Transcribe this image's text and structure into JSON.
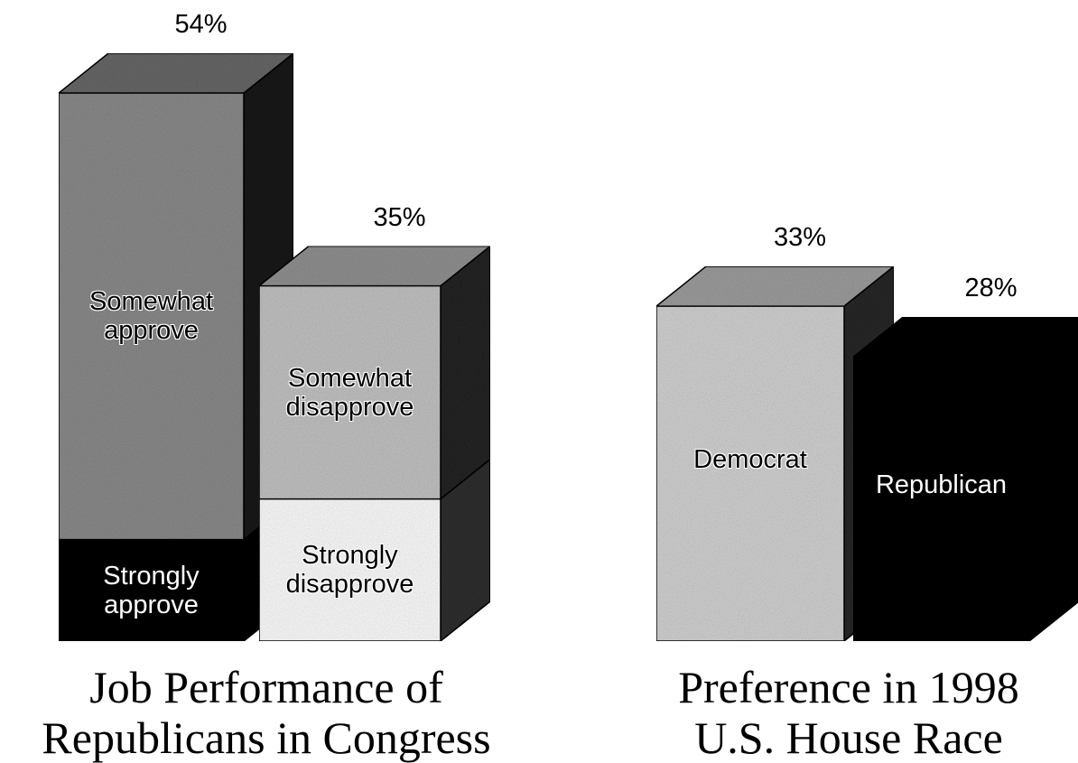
{
  "chart_data": [
    {
      "type": "bar",
      "stacked": true,
      "title": "Job Performance of Republicans in Congress",
      "categories": [
        null,
        null
      ],
      "series": [
        {
          "name": "Strongly approve",
          "color": "#000000",
          "values": [
            10,
            null
          ]
        },
        {
          "name": "Somewhat approve",
          "color": "#8c8c8c",
          "values": [
            44,
            null
          ]
        },
        {
          "name": "Strongly disapprove",
          "color": "#ffffff",
          "values": [
            null,
            14
          ]
        },
        {
          "name": "Somewhat disapprove",
          "color": "#c4c4c4",
          "values": [
            null,
            21
          ]
        }
      ],
      "totals": [
        54,
        35
      ],
      "total_labels": [
        "54%",
        "35%"
      ]
    },
    {
      "type": "bar",
      "title": "Preference in 1998 U.S. House Race",
      "categories": [
        "Democrat",
        "Republican"
      ],
      "values": [
        33,
        28
      ],
      "value_labels": [
        "33%",
        "28%"
      ],
      "colors": [
        "#d4d4d4",
        "#000000"
      ]
    }
  ]
}
